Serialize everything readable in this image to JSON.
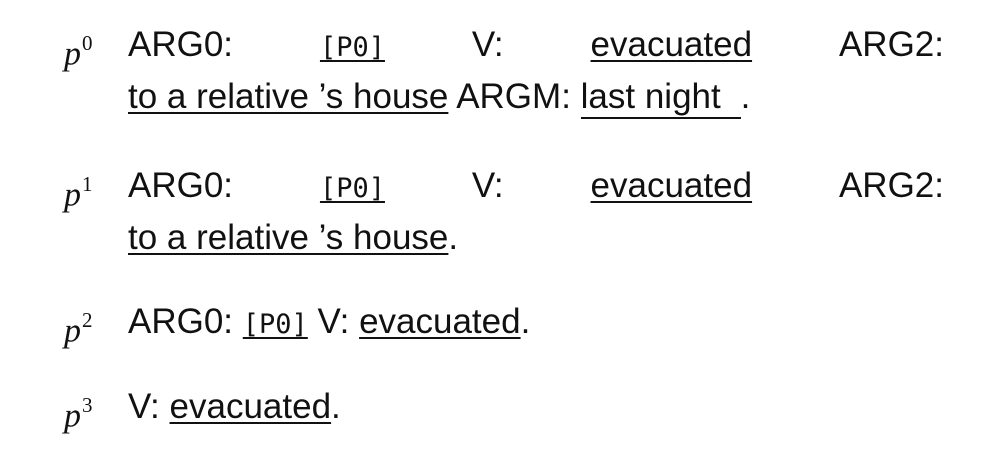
{
  "propositions": [
    {
      "label": "p",
      "index": "0",
      "args": {
        "arg0_label": "ARG0:",
        "arg0_value": "[P0]",
        "v_label": "V:",
        "v_value": "evacuated",
        "arg2_label": "ARG2:",
        "arg2_value": "to a relative ’s house",
        "argm_label": "ARGM:",
        "argm_value": "last night",
        "end": "."
      }
    },
    {
      "label": "p",
      "index": "1",
      "args": {
        "arg0_label": "ARG0:",
        "arg0_value": "[P0]",
        "v_label": "V:",
        "v_value": "evacuated",
        "arg2_label": "ARG2:",
        "arg2_value": "to a relative ’s house",
        "end": "."
      }
    },
    {
      "label": "p",
      "index": "2",
      "args": {
        "arg0_label": "ARG0:",
        "arg0_value": "[P0]",
        "v_label": "V:",
        "v_value": "evacuated",
        "end": "."
      }
    },
    {
      "label": "p",
      "index": "3",
      "args": {
        "v_label": "V:",
        "v_value": "evacuated",
        "end": "."
      }
    }
  ]
}
